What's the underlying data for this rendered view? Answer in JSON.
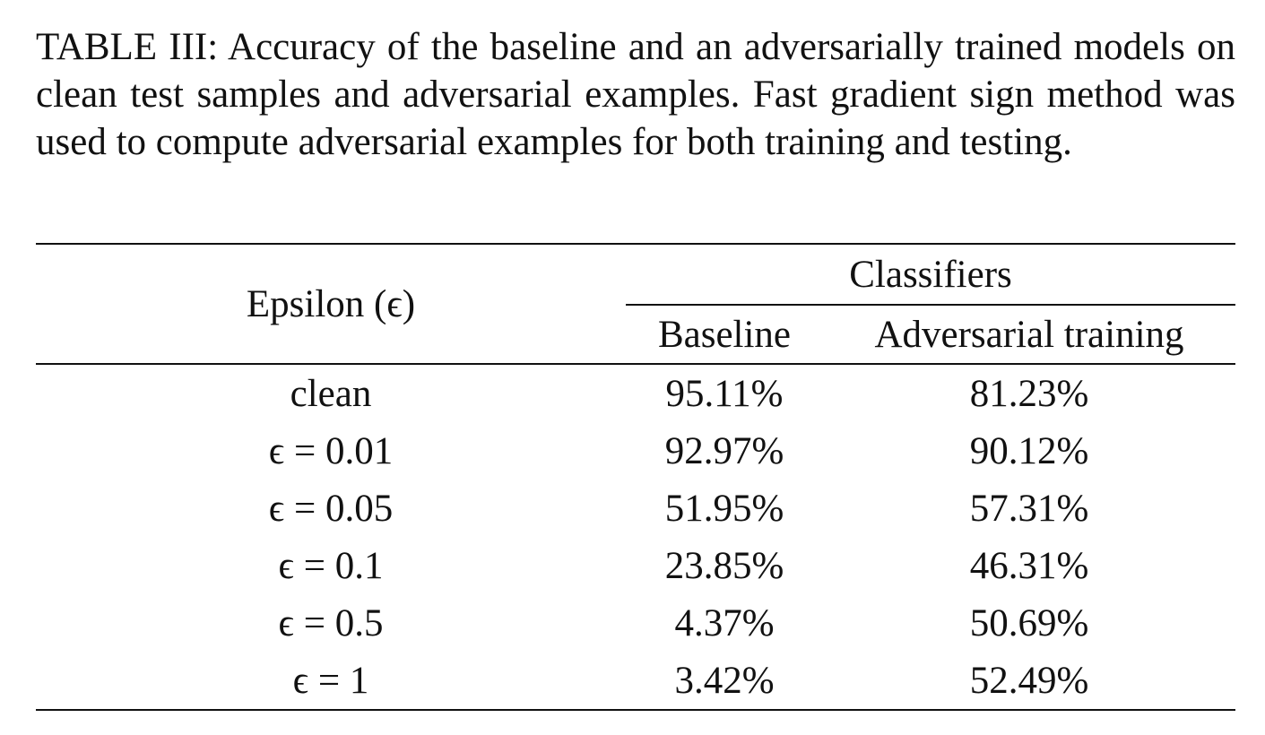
{
  "caption": {
    "label": "TABLE III:",
    "text": "Accuracy of the baseline and an adversarially trained models on clean test samples and adversarial examples. Fast gradient sign method was used to compute adversarial examples for both training and testing."
  },
  "table": {
    "row_header": "Epsilon (ϵ)",
    "group_header": "Classifiers",
    "columns": [
      "Baseline",
      "Adversarial training"
    ],
    "rows": [
      {
        "epsilon": "clean",
        "baseline": "95.11%",
        "adversarial": "81.23%"
      },
      {
        "epsilon": "ϵ = 0.01",
        "baseline": "92.97%",
        "adversarial": "90.12%"
      },
      {
        "epsilon": "ϵ = 0.05",
        "baseline": "51.95%",
        "adversarial": "57.31%"
      },
      {
        "epsilon": "ϵ = 0.1",
        "baseline": "23.85%",
        "adversarial": "46.31%"
      },
      {
        "epsilon": "ϵ = 0.5",
        "baseline": "4.37%",
        "adversarial": "50.69%"
      },
      {
        "epsilon": "ϵ = 1",
        "baseline": "3.42%",
        "adversarial": "52.49%"
      }
    ]
  }
}
